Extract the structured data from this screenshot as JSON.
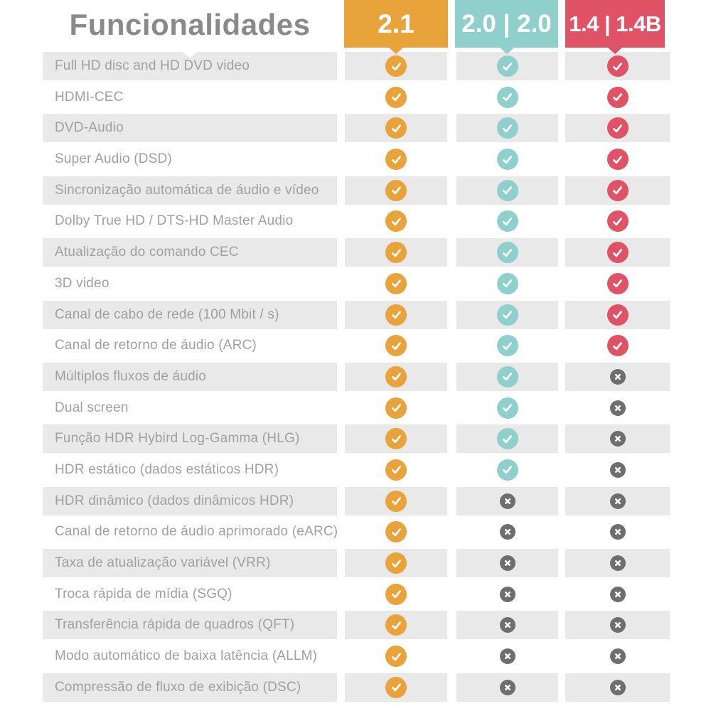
{
  "chart_data": {
    "type": "table",
    "title": "Funcionalidades",
    "columns": [
      {
        "label": "2.1",
        "color": "#E8A33B"
      },
      {
        "label": "2.0 | 2.0",
        "color": "#8FD0CC"
      },
      {
        "label": "1.4 | 1.4B",
        "color": "#E05266"
      }
    ],
    "rows": [
      {
        "feature": "Full HD disc and HD DVD video",
        "support": [
          true,
          true,
          true
        ]
      },
      {
        "feature": "HDMI-CEC",
        "support": [
          true,
          true,
          true
        ]
      },
      {
        "feature": "DVD-Audio",
        "support": [
          true,
          true,
          true
        ]
      },
      {
        "feature": "Super Audio (DSD)",
        "support": [
          true,
          true,
          true
        ]
      },
      {
        "feature": "Sincronização automática de áudio e vídeo",
        "support": [
          true,
          true,
          true
        ]
      },
      {
        "feature": "Dolby True HD / DTS-HD Master Audio",
        "support": [
          true,
          true,
          true
        ]
      },
      {
        "feature": "Atualização do comando CEC",
        "support": [
          true,
          true,
          true
        ]
      },
      {
        "feature": "3D video",
        "support": [
          true,
          true,
          true
        ]
      },
      {
        "feature": "Canal de cabo de rede (100 Mbit / s)",
        "support": [
          true,
          true,
          true
        ]
      },
      {
        "feature": "Canal de retorno de áudio (ARC)",
        "support": [
          true,
          true,
          true
        ]
      },
      {
        "feature": "Múltiplos fluxos de áudio",
        "support": [
          true,
          true,
          false
        ]
      },
      {
        "feature": "Dual screen",
        "support": [
          true,
          true,
          false
        ]
      },
      {
        "feature": "Função HDR Hybird Log-Gamma (HLG)",
        "support": [
          true,
          true,
          false
        ]
      },
      {
        "feature": "HDR estático (dados estáticos HDR)",
        "support": [
          true,
          true,
          false
        ]
      },
      {
        "feature": "HDR dinâmico (dados dinâmicos HDR)",
        "support": [
          true,
          false,
          false
        ]
      },
      {
        "feature": "Canal de retorno de áudio aprimorado (eARC)",
        "support": [
          true,
          false,
          false
        ]
      },
      {
        "feature": "Taxa de atualização variável (VRR)",
        "support": [
          true,
          false,
          false
        ]
      },
      {
        "feature": "Troca rápida de mídia (SGQ)",
        "support": [
          true,
          false,
          false
        ]
      },
      {
        "feature": "Transferência rápida de quadros (QFT)",
        "support": [
          true,
          false,
          false
        ]
      },
      {
        "feature": "Modo automático de baixa latência (ALLM)",
        "support": [
          true,
          false,
          false
        ]
      },
      {
        "feature": "Compressão de fluxo de exibição (DSC)",
        "support": [
          true,
          false,
          false
        ]
      }
    ]
  },
  "colors": {
    "row_stripe": "#E9E9E9",
    "cross_circle": "#6E6E6E",
    "title_text": "#8A8A8A",
    "feature_text": "#A0A0A0",
    "icon_glyph": "#FFFFFF"
  }
}
